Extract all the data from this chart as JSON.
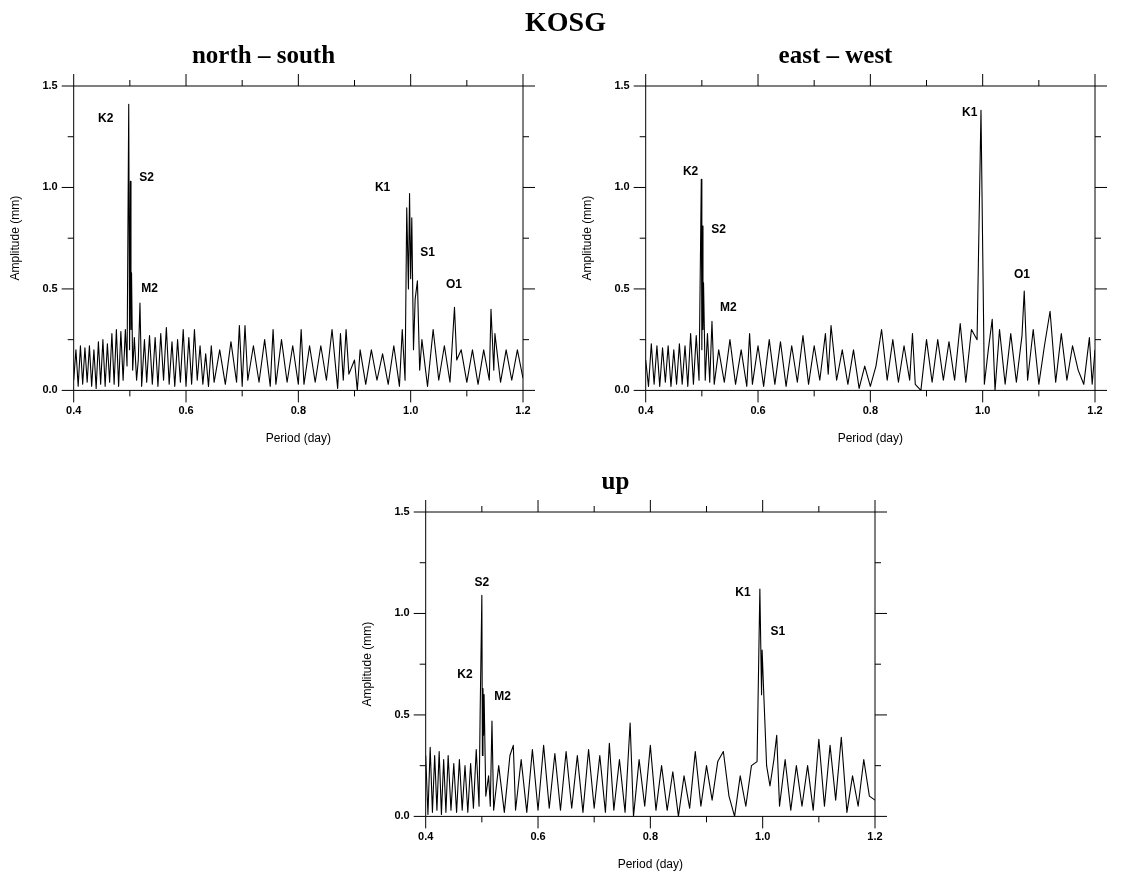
{
  "chart_data": [
    {
      "type": "line",
      "title": "KOSG",
      "subtitle": "north – south",
      "xlabel": "Period (day)",
      "ylabel": "Amplitude (mm)",
      "xlim": [
        0.4,
        1.2
      ],
      "ylim": [
        0,
        1.5
      ],
      "xticks": [
        {
          "value": 0.4,
          "label": "0.4"
        },
        {
          "value": 0.5,
          "label": null
        },
        {
          "value": 0.6,
          "label": "0.6"
        },
        {
          "value": 0.7,
          "label": null
        },
        {
          "value": 0.8,
          "label": "0.8"
        },
        {
          "value": 0.9,
          "label": null
        },
        {
          "value": 1.0,
          "label": "1.0"
        },
        {
          "value": 1.1,
          "label": null
        },
        {
          "value": 1.2,
          "label": "1.2"
        }
      ],
      "yticks": [
        {
          "value": 0,
          "label": "0.0"
        },
        {
          "value": 0.25,
          "label": null
        },
        {
          "value": 0.5,
          "label": "0.5"
        },
        {
          "value": 0.75,
          "label": null
        },
        {
          "value": 1.0,
          "label": "1.0"
        },
        {
          "value": 1.25,
          "label": null
        },
        {
          "value": 1.5,
          "label": "1.5"
        }
      ],
      "grid": false,
      "legend": false,
      "marker": "none",
      "line_style": "solid",
      "annotations": [
        "K2",
        "S2",
        "M2",
        "K1",
        "S1",
        "O1"
      ],
      "series": [
        {
          "color": "#000000",
          "x": [
            0.4,
            0.404,
            0.408,
            0.412,
            0.416,
            0.42,
            0.424,
            0.428,
            0.432,
            0.436,
            0.44,
            0.444,
            0.448,
            0.452,
            0.456,
            0.46,
            0.464,
            0.468,
            0.472,
            0.476,
            0.48,
            0.484,
            0.488,
            0.492,
            0.495,
            0.498,
            0.4995,
            0.501,
            0.502,
            0.503,
            0.505,
            0.508,
            0.512,
            0.515,
            0.518,
            0.521,
            0.526,
            0.53,
            0.535,
            0.54,
            0.545,
            0.55,
            0.555,
            0.56,
            0.565,
            0.57,
            0.575,
            0.58,
            0.585,
            0.59,
            0.595,
            0.6,
            0.605,
            0.61,
            0.615,
            0.62,
            0.625,
            0.63,
            0.635,
            0.64,
            0.645,
            0.65,
            0.66,
            0.67,
            0.68,
            0.69,
            0.695,
            0.7,
            0.705,
            0.71,
            0.72,
            0.73,
            0.74,
            0.75,
            0.755,
            0.76,
            0.77,
            0.78,
            0.79,
            0.8,
            0.805,
            0.81,
            0.82,
            0.83,
            0.84,
            0.85,
            0.86,
            0.87,
            0.875,
            0.88,
            0.885,
            0.89,
            0.9,
            0.905,
            0.91,
            0.92,
            0.93,
            0.94,
            0.95,
            0.96,
            0.97,
            0.98,
            0.985,
            0.99,
            0.993,
            0.996,
            0.998,
            1.0,
            1.002,
            1.005,
            1.008,
            1.012,
            1.016,
            1.02,
            1.03,
            1.04,
            1.05,
            1.06,
            1.07,
            1.078,
            1.082,
            1.09,
            1.1,
            1.11,
            1.12,
            1.13,
            1.14,
            1.143,
            1.148,
            1.15,
            1.16,
            1.17,
            1.18,
            1.19,
            1.2
          ],
          "values": [
            0.05,
            0.2,
            0.02,
            0.22,
            0.03,
            0.21,
            0.04,
            0.22,
            0.02,
            0.2,
            0.01,
            0.24,
            0.03,
            0.25,
            0.02,
            0.23,
            0.04,
            0.28,
            0.03,
            0.3,
            0.02,
            0.29,
            0.05,
            0.3,
            0.12,
            1.41,
            0.2,
            1.03,
            0.3,
            0.58,
            0.1,
            0.26,
            0.05,
            0.15,
            0.43,
            0.02,
            0.25,
            0.04,
            0.27,
            0.03,
            0.26,
            0.02,
            0.28,
            0.05,
            0.31,
            0.03,
            0.24,
            0.02,
            0.25,
            0.04,
            0.3,
            0.02,
            0.26,
            0.03,
            0.3,
            0.05,
            0.22,
            0.03,
            0.18,
            0.02,
            0.22,
            0.04,
            0.2,
            0.03,
            0.24,
            0.04,
            0.32,
            0.02,
            0.32,
            0.05,
            0.22,
            0.04,
            0.25,
            0.02,
            0.3,
            0.03,
            0.25,
            0.04,
            0.22,
            0.03,
            0.3,
            0.03,
            0.22,
            0.04,
            0.22,
            0.05,
            0.3,
            0.01,
            0.28,
            0.05,
            0.3,
            0.08,
            0.15,
            0.0,
            0.2,
            0.03,
            0.2,
            0.05,
            0.18,
            0.03,
            0.22,
            0.02,
            0.3,
            0.05,
            0.9,
            0.5,
            0.97,
            0.55,
            0.85,
            0.2,
            0.45,
            0.54,
            0.1,
            0.25,
            0.02,
            0.3,
            0.05,
            0.22,
            0.04,
            0.41,
            0.15,
            0.2,
            0.04,
            0.2,
            0.03,
            0.2,
            0.05,
            0.4,
            0.1,
            0.28,
            0.04,
            0.2,
            0.05,
            0.2,
            0.06
          ]
        }
      ]
    },
    {
      "type": "line",
      "title": "east – west",
      "xlabel": "Period (day)",
      "ylabel": "Amplitude (mm)",
      "xlim": [
        0.4,
        1.2
      ],
      "ylim": [
        0,
        1.5
      ],
      "xticks": [
        {
          "value": 0.4,
          "label": "0.4"
        },
        {
          "value": 0.5,
          "label": null
        },
        {
          "value": 0.6,
          "label": "0.6"
        },
        {
          "value": 0.7,
          "label": null
        },
        {
          "value": 0.8,
          "label": "0.8"
        },
        {
          "value": 0.9,
          "label": null
        },
        {
          "value": 1.0,
          "label": "1.0"
        },
        {
          "value": 1.1,
          "label": null
        },
        {
          "value": 1.2,
          "label": "1.2"
        }
      ],
      "yticks": [
        {
          "value": 0,
          "label": "0.0"
        },
        {
          "value": 0.25,
          "label": null
        },
        {
          "value": 0.5,
          "label": "0.5"
        },
        {
          "value": 0.75,
          "label": null
        },
        {
          "value": 1.0,
          "label": "1.0"
        },
        {
          "value": 1.25,
          "label": null
        },
        {
          "value": 1.5,
          "label": "1.5"
        }
      ],
      "grid": false,
      "legend": false,
      "marker": "none",
      "line_style": "solid",
      "annotations": [
        "K2",
        "S2",
        "M2",
        "K1",
        "O1"
      ],
      "series": [
        {
          "color": "#000000",
          "x": [
            0.4,
            0.405,
            0.41,
            0.415,
            0.42,
            0.425,
            0.43,
            0.435,
            0.44,
            0.445,
            0.45,
            0.455,
            0.46,
            0.465,
            0.47,
            0.475,
            0.48,
            0.485,
            0.49,
            0.495,
            0.499,
            0.5,
            0.501,
            0.502,
            0.503,
            0.506,
            0.51,
            0.514,
            0.518,
            0.522,
            0.53,
            0.54,
            0.55,
            0.56,
            0.57,
            0.58,
            0.585,
            0.59,
            0.6,
            0.61,
            0.62,
            0.63,
            0.64,
            0.65,
            0.66,
            0.67,
            0.68,
            0.69,
            0.7,
            0.71,
            0.72,
            0.725,
            0.73,
            0.74,
            0.75,
            0.76,
            0.77,
            0.78,
            0.79,
            0.8,
            0.81,
            0.82,
            0.83,
            0.84,
            0.85,
            0.86,
            0.87,
            0.875,
            0.88,
            0.89,
            0.9,
            0.91,
            0.92,
            0.93,
            0.94,
            0.95,
            0.96,
            0.97,
            0.98,
            0.99,
            0.997,
            1.003,
            1.01,
            1.017,
            1.022,
            1.03,
            1.04,
            1.05,
            1.06,
            1.07,
            1.074,
            1.08,
            1.09,
            1.1,
            1.11,
            1.12,
            1.13,
            1.14,
            1.15,
            1.16,
            1.17,
            1.18,
            1.19,
            1.195,
            1.2
          ],
          "values": [
            0.15,
            0.02,
            0.23,
            0.03,
            0.22,
            0.02,
            0.21,
            0.04,
            0.22,
            0.02,
            0.2,
            0.03,
            0.23,
            0.03,
            0.22,
            0.02,
            0.28,
            0.03,
            0.27,
            0.05,
            1.04,
            0.2,
            0.81,
            0.3,
            0.53,
            0.05,
            0.28,
            0.04,
            0.34,
            0.03,
            0.2,
            0.04,
            0.25,
            0.03,
            0.2,
            0.02,
            0.28,
            0.03,
            0.22,
            0.02,
            0.25,
            0.03,
            0.24,
            0.02,
            0.22,
            0.04,
            0.27,
            0.03,
            0.22,
            0.05,
            0.28,
            0.08,
            0.32,
            0.05,
            0.2,
            0.03,
            0.2,
            0.01,
            0.12,
            0.02,
            0.12,
            0.3,
            0.05,
            0.25,
            0.04,
            0.22,
            0.05,
            0.28,
            0.03,
            0.0,
            0.25,
            0.04,
            0.25,
            0.05,
            0.24,
            0.05,
            0.33,
            0.04,
            0.3,
            0.25,
            1.38,
            0.03,
            0.2,
            0.35,
            0.0,
            0.3,
            0.03,
            0.28,
            0.04,
            0.27,
            0.49,
            0.05,
            0.3,
            0.03,
            0.22,
            0.39,
            0.04,
            0.28,
            0.05,
            0.22,
            0.1,
            0.03,
            0.26,
            0.03,
            0.2
          ]
        }
      ]
    },
    {
      "type": "line",
      "title": "up",
      "xlabel": "Period (day)",
      "ylabel": "Amplitude (mm)",
      "xlim": [
        0.4,
        1.2
      ],
      "ylim": [
        0,
        1.5
      ],
      "xticks": [
        {
          "value": 0.4,
          "label": "0.4"
        },
        {
          "value": 0.5,
          "label": null
        },
        {
          "value": 0.6,
          "label": "0.6"
        },
        {
          "value": 0.7,
          "label": null
        },
        {
          "value": 0.8,
          "label": "0.8"
        },
        {
          "value": 0.9,
          "label": null
        },
        {
          "value": 1.0,
          "label": "1.0"
        },
        {
          "value": 1.1,
          "label": null
        },
        {
          "value": 1.2,
          "label": "1.2"
        }
      ],
      "yticks": [
        {
          "value": 0,
          "label": "0.0"
        },
        {
          "value": 0.25,
          "label": null
        },
        {
          "value": 0.5,
          "label": "0.5"
        },
        {
          "value": 0.75,
          "label": null
        },
        {
          "value": 1.0,
          "label": "1.0"
        },
        {
          "value": 1.25,
          "label": null
        },
        {
          "value": 1.5,
          "label": "1.5"
        }
      ],
      "grid": false,
      "legend": false,
      "marker": "none",
      "line_style": "solid",
      "annotations": [
        "S2",
        "K2",
        "M2",
        "K1",
        "S1"
      ],
      "series": [
        {
          "color": "#000000",
          "x": [
            0.4,
            0.404,
            0.408,
            0.412,
            0.416,
            0.42,
            0.424,
            0.428,
            0.432,
            0.436,
            0.44,
            0.445,
            0.45,
            0.455,
            0.46,
            0.465,
            0.47,
            0.475,
            0.48,
            0.485,
            0.49,
            0.495,
            0.497,
            0.5,
            0.501,
            0.502,
            0.503,
            0.504,
            0.507,
            0.512,
            0.515,
            0.518,
            0.521,
            0.53,
            0.54,
            0.55,
            0.556,
            0.56,
            0.57,
            0.58,
            0.59,
            0.6,
            0.61,
            0.62,
            0.63,
            0.64,
            0.65,
            0.66,
            0.67,
            0.68,
            0.69,
            0.7,
            0.71,
            0.72,
            0.727,
            0.735,
            0.745,
            0.755,
            0.764,
            0.77,
            0.78,
            0.79,
            0.8,
            0.81,
            0.82,
            0.83,
            0.84,
            0.85,
            0.86,
            0.87,
            0.88,
            0.89,
            0.9,
            0.91,
            0.92,
            0.93,
            0.94,
            0.95,
            0.96,
            0.97,
            0.98,
            0.99,
            0.995,
            0.998,
            0.999,
            1.002,
            1.007,
            1.013,
            1.02,
            1.025,
            1.03,
            1.04,
            1.05,
            1.06,
            1.07,
            1.08,
            1.09,
            1.1,
            1.11,
            1.12,
            1.13,
            1.14,
            1.15,
            1.16,
            1.17,
            1.18,
            1.19,
            1.2
          ],
          "values": [
            0.3,
            0.01,
            0.34,
            0.02,
            0.3,
            0.03,
            0.32,
            0.01,
            0.28,
            0.02,
            0.3,
            0.03,
            0.26,
            0.02,
            0.28,
            0.03,
            0.25,
            0.02,
            0.26,
            0.04,
            0.33,
            0.05,
            0.52,
            1.09,
            0.3,
            0.63,
            0.4,
            0.6,
            0.1,
            0.2,
            0.05,
            0.47,
            0.03,
            0.25,
            0.02,
            0.3,
            0.35,
            0.03,
            0.28,
            0.02,
            0.33,
            0.03,
            0.35,
            0.04,
            0.31,
            0.03,
            0.32,
            0.04,
            0.3,
            0.02,
            0.33,
            0.04,
            0.3,
            0.02,
            0.36,
            0.03,
            0.28,
            0.02,
            0.46,
            0.0,
            0.28,
            0.05,
            0.35,
            0.03,
            0.25,
            0.03,
            0.22,
            0.0,
            0.2,
            0.04,
            0.32,
            0.05,
            0.25,
            0.08,
            0.27,
            0.32,
            0.1,
            0.0,
            0.2,
            0.05,
            0.25,
            0.27,
            1.12,
            0.6,
            0.82,
            0.6,
            0.25,
            0.15,
            0.28,
            0.4,
            0.05,
            0.28,
            0.03,
            0.25,
            0.05,
            0.25,
            0.03,
            0.38,
            0.05,
            0.35,
            0.08,
            0.39,
            0.02,
            0.2,
            0.05,
            0.28,
            0.1,
            0.08
          ]
        }
      ]
    }
  ]
}
